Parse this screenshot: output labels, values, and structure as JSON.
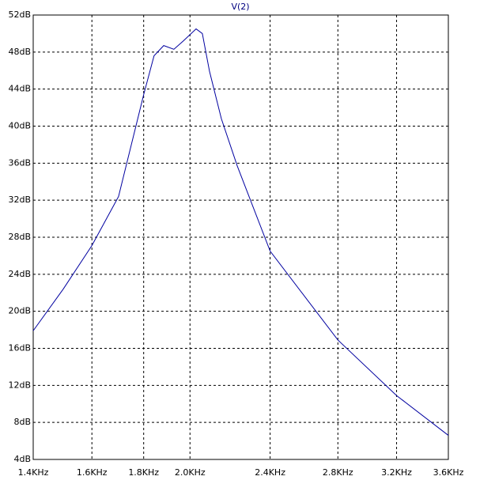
{
  "chart_data": {
    "type": "line",
    "title": "V(2)",
    "title_color": "#00007f",
    "x": [
      1400,
      1499,
      1600,
      1700,
      1800,
      1843,
      1884,
      1928,
      1970,
      2028,
      2057,
      2091,
      2148,
      2227,
      2400,
      2800,
      3200,
      3600
    ],
    "series": [
      {
        "name": "V(2)",
        "color": "#0000a0",
        "values": [
          17.9,
          22.4,
          27.1,
          32.4,
          43.4,
          47.6,
          48.7,
          48.3,
          49.2,
          50.5,
          50.0,
          45.9,
          40.8,
          35.7,
          26.5,
          16.9,
          10.9,
          6.6
        ]
      }
    ],
    "xlim": [
      1400,
      3600
    ],
    "xscale": "log",
    "xticks": [
      {
        "value": 1400,
        "label": "1.4KHz"
      },
      {
        "value": 1600,
        "label": "1.6KHz"
      },
      {
        "value": 1800,
        "label": "1.8KHz"
      },
      {
        "value": 2000,
        "label": "2.0KHz"
      },
      {
        "value": 2400,
        "label": "2.4KHz"
      },
      {
        "value": 2800,
        "label": "2.8KHz"
      },
      {
        "value": 3200,
        "label": "3.2KHz"
      },
      {
        "value": 3600,
        "label": "3.6KHz"
      }
    ],
    "ylim": [
      4,
      52
    ],
    "yticks": [
      {
        "value": 4,
        "label": "4dB"
      },
      {
        "value": 8,
        "label": "8dB"
      },
      {
        "value": 12,
        "label": "12dB"
      },
      {
        "value": 16,
        "label": "16dB"
      },
      {
        "value": 20,
        "label": "20dB"
      },
      {
        "value": 24,
        "label": "24dB"
      },
      {
        "value": 28,
        "label": "28dB"
      },
      {
        "value": 32,
        "label": "32dB"
      },
      {
        "value": 36,
        "label": "36dB"
      },
      {
        "value": 40,
        "label": "40dB"
      },
      {
        "value": 44,
        "label": "44dB"
      },
      {
        "value": 48,
        "label": "48dB"
      },
      {
        "value": 52,
        "label": "52dB"
      }
    ],
    "grid": true
  }
}
